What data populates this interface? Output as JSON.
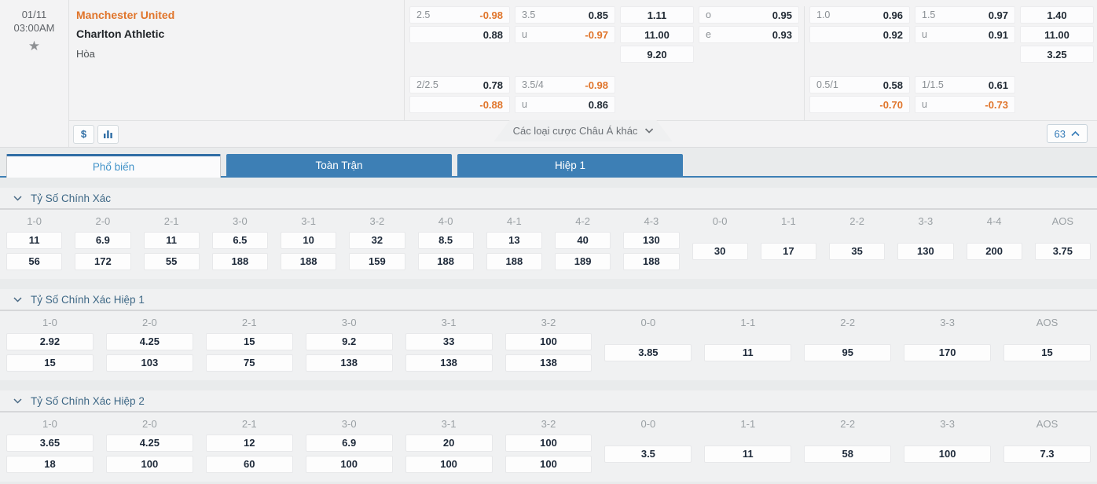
{
  "colors": {
    "accent_orange": "#e0752b",
    "tab_blue": "#3d7fb5",
    "link_blue": "#337ab7"
  },
  "match": {
    "date": "01/11",
    "time": "03:00AM",
    "home": "Manchester United",
    "away": "Charlton Athletic",
    "draw_label": "Hòa"
  },
  "top_odds": {
    "ft": {
      "hdp": [
        [
          "2.5",
          "-0.98"
        ],
        [
          "",
          "0.88"
        ]
      ],
      "ou": [
        [
          "3.5",
          "0.85"
        ],
        [
          "u",
          "-0.97"
        ]
      ],
      "x12": [
        "1.11",
        "11.00",
        "9.20"
      ],
      "oe": [
        [
          "o",
          "0.95"
        ],
        [
          "e",
          "0.93"
        ]
      ],
      "hdp2": [
        [
          "2/2.5",
          "0.78"
        ],
        [
          "",
          "-0.88"
        ]
      ],
      "ou2": [
        [
          "3.5/4",
          "-0.98"
        ],
        [
          "u",
          "0.86"
        ]
      ]
    },
    "h1": {
      "hdp": [
        [
          "1.0",
          "0.96"
        ],
        [
          "",
          "0.92"
        ]
      ],
      "ou": [
        [
          "1.5",
          "0.97"
        ],
        [
          "u",
          "0.91"
        ]
      ],
      "x12": [
        "1.40",
        "11.00",
        "3.25"
      ],
      "hdp2": [
        [
          "0.5/1",
          "0.58"
        ],
        [
          "",
          "-0.70"
        ]
      ],
      "ou2": [
        [
          "1/1.5",
          "0.61"
        ],
        [
          "u",
          "-0.73"
        ]
      ]
    }
  },
  "toolbar": {
    "money_label": "$",
    "more_markets_label": "Các loại cược Châu Á khác",
    "market_count": "63"
  },
  "tabs": [
    {
      "label": "Phổ biến",
      "active": true
    },
    {
      "label": "Toàn Trận",
      "active": false
    },
    {
      "label": "Hiệp 1",
      "active": false
    }
  ],
  "sections": [
    {
      "title": "Tỷ Số Chính Xác",
      "columns": [
        {
          "score": "1-0",
          "odds": [
            "11",
            "56"
          ]
        },
        {
          "score": "2-0",
          "odds": [
            "6.9",
            "172"
          ]
        },
        {
          "score": "2-1",
          "odds": [
            "11",
            "55"
          ]
        },
        {
          "score": "3-0",
          "odds": [
            "6.5",
            "188"
          ]
        },
        {
          "score": "3-1",
          "odds": [
            "10",
            "188"
          ]
        },
        {
          "score": "3-2",
          "odds": [
            "32",
            "159"
          ]
        },
        {
          "score": "4-0",
          "odds": [
            "8.5",
            "188"
          ]
        },
        {
          "score": "4-1",
          "odds": [
            "13",
            "188"
          ]
        },
        {
          "score": "4-2",
          "odds": [
            "40",
            "189"
          ]
        },
        {
          "score": "4-3",
          "odds": [
            "130",
            "188"
          ]
        },
        {
          "score": "0-0",
          "odds": [
            "30"
          ]
        },
        {
          "score": "1-1",
          "odds": [
            "17"
          ]
        },
        {
          "score": "2-2",
          "odds": [
            "35"
          ]
        },
        {
          "score": "3-3",
          "odds": [
            "130"
          ]
        },
        {
          "score": "4-4",
          "odds": [
            "200"
          ]
        },
        {
          "score": "AOS",
          "odds": [
            "3.75"
          ]
        }
      ]
    },
    {
      "title": "Tỷ Số Chính Xác Hiệp 1",
      "columns": [
        {
          "score": "1-0",
          "odds": [
            "2.92",
            "15"
          ]
        },
        {
          "score": "2-0",
          "odds": [
            "4.25",
            "103"
          ]
        },
        {
          "score": "2-1",
          "odds": [
            "15",
            "75"
          ]
        },
        {
          "score": "3-0",
          "odds": [
            "9.2",
            "138"
          ]
        },
        {
          "score": "3-1",
          "odds": [
            "33",
            "138"
          ]
        },
        {
          "score": "3-2",
          "odds": [
            "100",
            "138"
          ]
        },
        {
          "score": "0-0",
          "odds": [
            "3.85"
          ]
        },
        {
          "score": "1-1",
          "odds": [
            "11"
          ]
        },
        {
          "score": "2-2",
          "odds": [
            "95"
          ]
        },
        {
          "score": "3-3",
          "odds": [
            "170"
          ]
        },
        {
          "score": "AOS",
          "odds": [
            "15"
          ]
        }
      ]
    },
    {
      "title": "Tỷ Số Chính Xác Hiệp 2",
      "columns": [
        {
          "score": "1-0",
          "odds": [
            "3.65",
            "18"
          ]
        },
        {
          "score": "2-0",
          "odds": [
            "4.25",
            "100"
          ]
        },
        {
          "score": "2-1",
          "odds": [
            "12",
            "60"
          ]
        },
        {
          "score": "3-0",
          "odds": [
            "6.9",
            "100"
          ]
        },
        {
          "score": "3-1",
          "odds": [
            "20",
            "100"
          ]
        },
        {
          "score": "3-2",
          "odds": [
            "100",
            "100"
          ]
        },
        {
          "score": "0-0",
          "odds": [
            "3.5"
          ]
        },
        {
          "score": "1-1",
          "odds": [
            "11"
          ]
        },
        {
          "score": "2-2",
          "odds": [
            "58"
          ]
        },
        {
          "score": "3-3",
          "odds": [
            "100"
          ]
        },
        {
          "score": "AOS",
          "odds": [
            "7.3"
          ]
        }
      ]
    }
  ]
}
